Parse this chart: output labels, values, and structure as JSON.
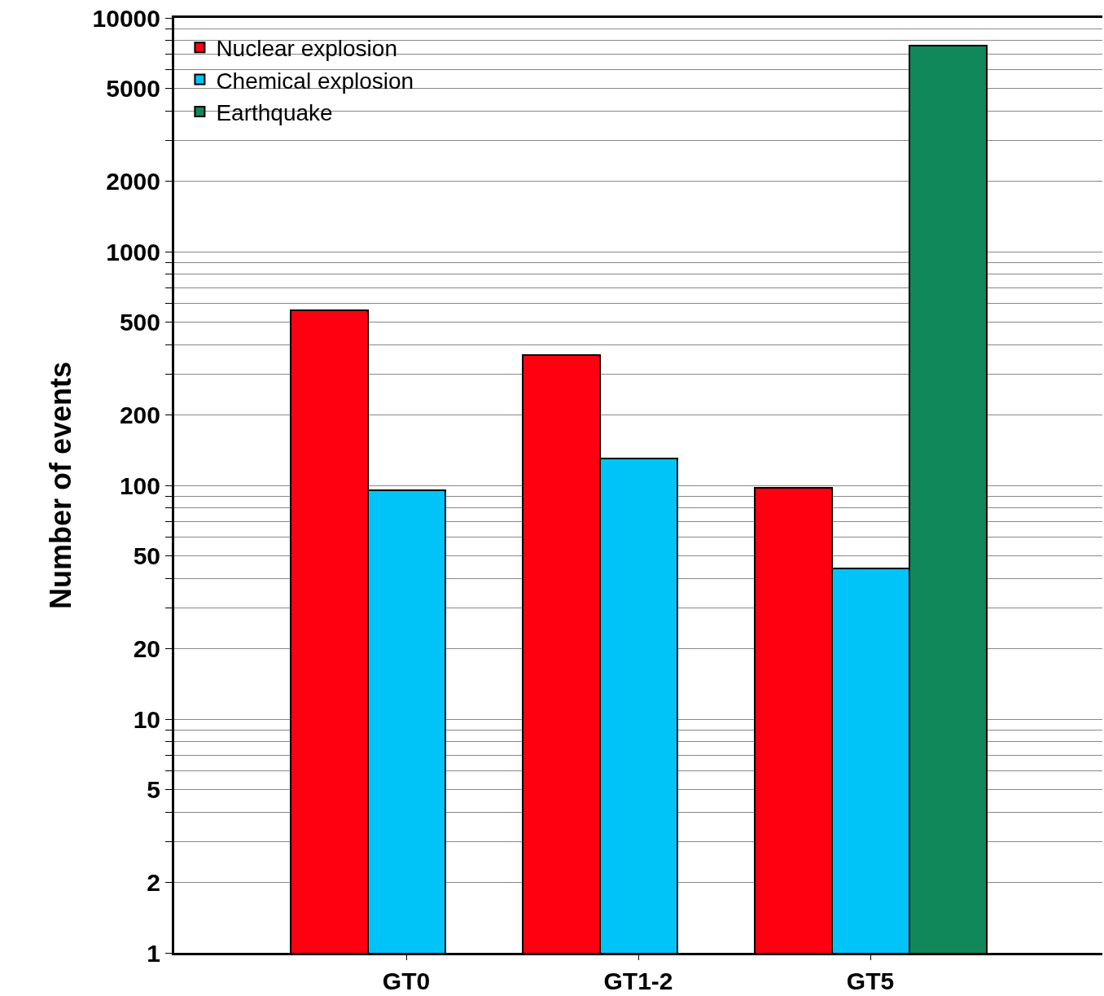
{
  "chart_data": {
    "type": "bar",
    "ylabel": "Number of events",
    "categories": [
      "GT0",
      "GT1-2",
      "GT5"
    ],
    "series": [
      {
        "name": "Nuclear explosion",
        "color": "#ff0010",
        "values": [
          560,
          360,
          98
        ]
      },
      {
        "name": "Chemical explosion",
        "color": "#00c4f8",
        "values": [
          95,
          130,
          44
        ]
      },
      {
        "name": "Earthquake",
        "color": "#10885a",
        "values": [
          null,
          null,
          7600
        ]
      }
    ],
    "log": true,
    "ylim": [
      1,
      10000
    ],
    "yticks": [
      1,
      2,
      {
        "value": 3,
        "label": null
      },
      {
        "value": 4,
        "label": null
      },
      5,
      {
        "value": 6,
        "label": null
      },
      {
        "value": 7,
        "label": null
      },
      {
        "value": 8,
        "label": null
      },
      {
        "value": 9,
        "label": null
      },
      10,
      20,
      {
        "value": 30,
        "label": null
      },
      {
        "value": 40,
        "label": null
      },
      50,
      {
        "value": 60,
        "label": null
      },
      {
        "value": 70,
        "label": null
      },
      {
        "value": 80,
        "label": null
      },
      {
        "value": 90,
        "label": null
      },
      100,
      200,
      {
        "value": 300,
        "label": null
      },
      {
        "value": 400,
        "label": null
      },
      500,
      {
        "value": 600,
        "label": null
      },
      {
        "value": 700,
        "label": null
      },
      {
        "value": 800,
        "label": null
      },
      {
        "value": 900,
        "label": null
      },
      1000,
      2000,
      {
        "value": 3000,
        "label": null
      },
      {
        "value": 4000,
        "label": null
      },
      5000,
      {
        "value": 6000,
        "label": null
      },
      {
        "value": 7000,
        "label": null
      },
      {
        "value": 8000,
        "label": null
      },
      {
        "value": 9000,
        "label": null
      },
      10000
    ],
    "grid": "y",
    "legend": "top left"
  }
}
